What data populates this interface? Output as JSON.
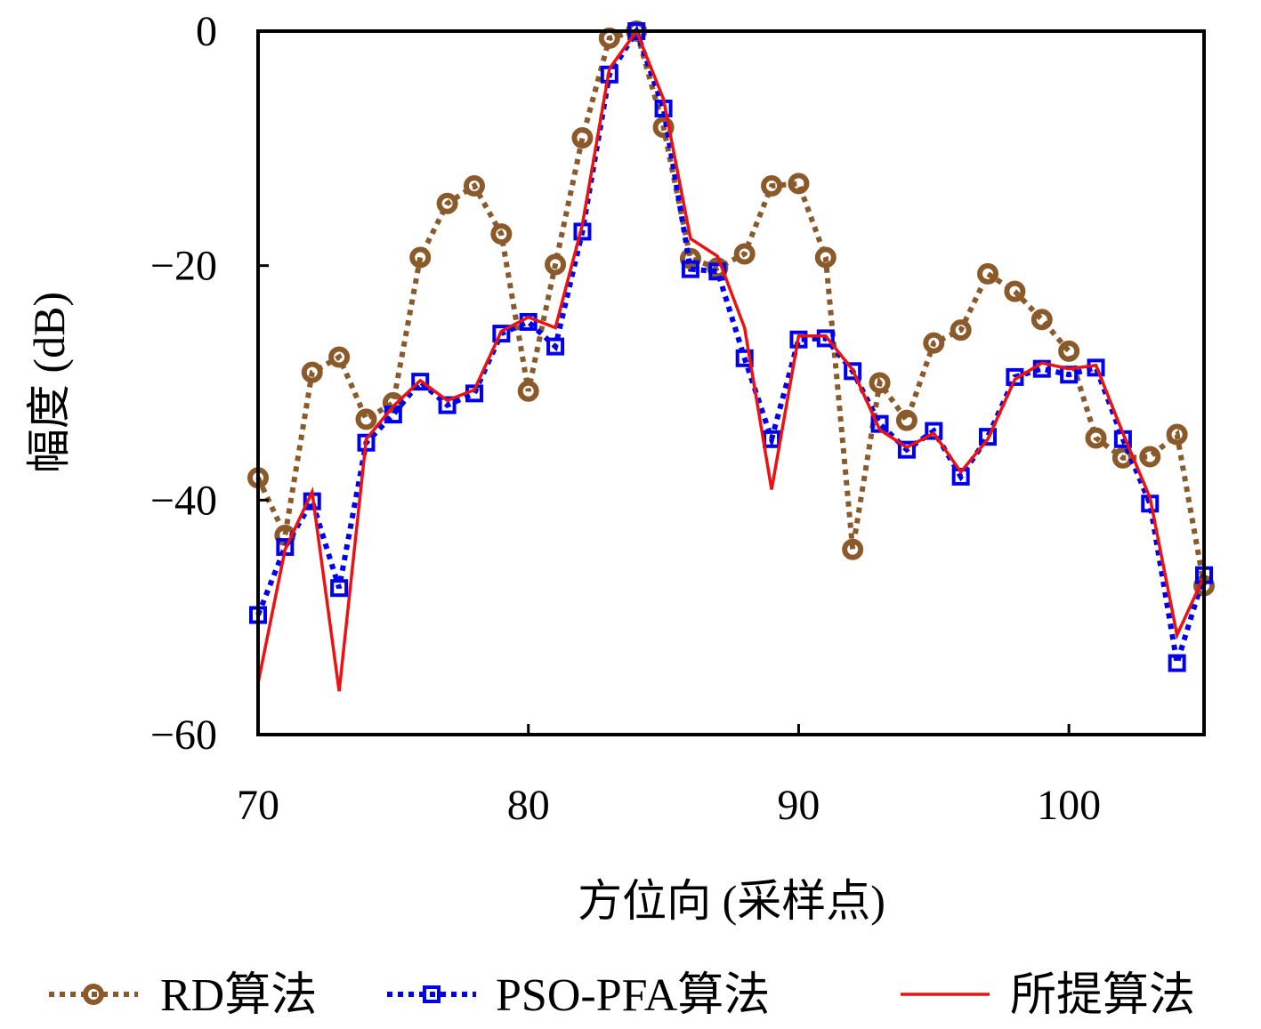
{
  "chart_data": {
    "type": "line",
    "title": "",
    "xlabel": "方位向 (采样点)",
    "ylabel": "幅度 (dB)",
    "xlim": [
      70,
      105
    ],
    "ylim": [
      -60,
      0
    ],
    "xticks": [
      70,
      80,
      90,
      100
    ],
    "yticks": [
      0,
      -20,
      -40,
      -60
    ],
    "xtick_labels": [
      "70",
      "80",
      "90",
      "100"
    ],
    "ytick_labels": [
      "0",
      "−20",
      "−40",
      "−60"
    ],
    "grid": false,
    "legend_position": "bottom",
    "x": [
      70,
      71,
      72,
      73,
      74,
      75,
      76,
      77,
      78,
      79,
      80,
      81,
      82,
      83,
      84,
      85,
      86,
      87,
      88,
      89,
      90,
      91,
      92,
      93,
      94,
      95,
      96,
      97,
      98,
      99,
      100,
      101,
      102,
      103,
      104,
      105
    ],
    "series": [
      {
        "name": "RD算法",
        "color": "#8B5A2B",
        "style": "dotted",
        "marker": "circle",
        "values": [
          -38.1,
          -43.0,
          -29.1,
          -27.8,
          -33.1,
          -31.7,
          -19.3,
          -14.7,
          -13.2,
          -17.3,
          -30.7,
          -19.9,
          -9.1,
          -0.6,
          0,
          -8.2,
          -19.4,
          -20.2,
          -19.0,
          -13.2,
          -13.0,
          -19.3,
          -44.2,
          -30.0,
          -33.2,
          -26.6,
          -25.5,
          -20.7,
          -22.2,
          -24.6,
          -27.3,
          -34.7,
          -36.4,
          -36.3,
          -34.4,
          -47.3
        ]
      },
      {
        "name": "PSO-PFA算法",
        "color": "#0000EE",
        "style": "dotted",
        "marker": "square",
        "values": [
          -49.8,
          -44.0,
          -40.1,
          -47.5,
          -35.1,
          -32.7,
          -29.9,
          -31.9,
          -30.9,
          -25.8,
          -24.8,
          -26.9,
          -17.1,
          -3.7,
          0,
          -6.6,
          -20.3,
          -20.5,
          -27.9,
          -34.8,
          -26.3,
          -26.2,
          -29.0,
          -33.5,
          -35.7,
          -34.1,
          -38.0,
          -34.6,
          -29.5,
          -28.8,
          -29.3,
          -28.7,
          -34.8,
          -40.3,
          -53.9,
          -46.4
        ]
      },
      {
        "name": "所提算法",
        "color": "#EE1111",
        "style": "solid",
        "marker": "none",
        "values": [
          -55.6,
          -44.2,
          -39.3,
          -56.3,
          -34.8,
          -32.0,
          -29.8,
          -31.5,
          -30.6,
          -25.6,
          -24.4,
          -25.3,
          -16.5,
          -3.2,
          0,
          -5.8,
          -17.7,
          -19.2,
          -25.3,
          -39.1,
          -26.0,
          -26.0,
          -28.9,
          -34.0,
          -35.5,
          -34.3,
          -37.6,
          -34.8,
          -29.7,
          -28.3,
          -28.8,
          -28.5,
          -34.3,
          -39.8,
          -51.5,
          -46.5
        ]
      }
    ],
    "legend": [
      {
        "label": "RD算法"
      },
      {
        "label": "PSO-PFA算法"
      },
      {
        "label": "所提算法"
      }
    ]
  }
}
